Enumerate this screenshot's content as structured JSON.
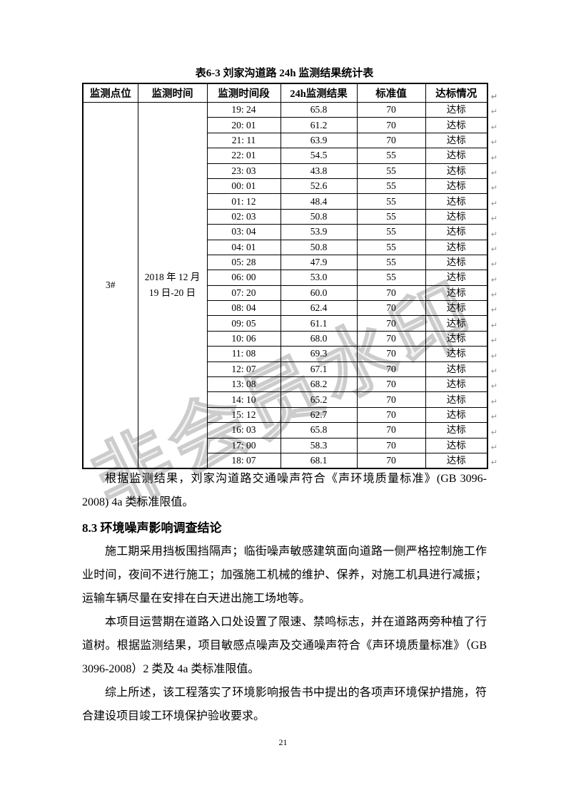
{
  "watermark": {
    "text": "非会员水印",
    "color": "#cccccc"
  },
  "table": {
    "title": "表6-3  刘家沟道路 24h 监测结果统计表",
    "headers": [
      "监测点位",
      "监测时间",
      "监测时间段",
      "24h监测结果",
      "标准值",
      "达标情况"
    ],
    "point": "3#",
    "period_line1": "2018 年 12 月",
    "period_line2": "19 日-20 日",
    "row_end_mark": "↵",
    "rows": [
      [
        "19: 24",
        "65.8",
        "70",
        "达标"
      ],
      [
        "20: 01",
        "61.2",
        "70",
        "达标"
      ],
      [
        "21: 11",
        "63.9",
        "70",
        "达标"
      ],
      [
        "22: 01",
        "54.5",
        "55",
        "达标"
      ],
      [
        "23: 03",
        "43.8",
        "55",
        "达标"
      ],
      [
        "00: 01",
        "52.6",
        "55",
        "达标"
      ],
      [
        "01: 12",
        "48.4",
        "55",
        "达标"
      ],
      [
        "02: 03",
        "50.8",
        "55",
        "达标"
      ],
      [
        "03: 04",
        "53.9",
        "55",
        "达标"
      ],
      [
        "04: 01",
        "50.8",
        "55",
        "达标"
      ],
      [
        "05: 28",
        "47.9",
        "55",
        "达标"
      ],
      [
        "06: 00",
        "53.0",
        "55",
        "达标"
      ],
      [
        "07: 20",
        "60.0",
        "70",
        "达标"
      ],
      [
        "08: 04",
        "62.4",
        "70",
        "达标"
      ],
      [
        "09: 05",
        "61.1",
        "70",
        "达标"
      ],
      [
        "10: 06",
        "68.0",
        "70",
        "达标"
      ],
      [
        "11: 08",
        "69.3",
        "70",
        "达标"
      ],
      [
        "12: 07",
        "67.1",
        "70",
        "达标"
      ],
      [
        "13: 08",
        "68.2",
        "70",
        "达标"
      ],
      [
        "14: 10",
        "65.2",
        "70",
        "达标"
      ],
      [
        "15: 12",
        "62.7",
        "70",
        "达标"
      ],
      [
        "16: 03",
        "65.8",
        "70",
        "达标"
      ],
      [
        "17: 00",
        "58.3",
        "70",
        "达标"
      ],
      [
        "18: 07",
        "68.1",
        "70",
        "达标"
      ]
    ]
  },
  "text": {
    "after_table": "根据监测结果，刘家沟道路交通噪声符合《声环境质量标准》(GB 3096-2008) 4a 类标准限值。",
    "section_heading": "8.3 环境噪声影响调查结论",
    "para1": "施工期采用挡板围挡隔声；临街噪声敏感建筑面向道路一侧严格控制施工作业时间，夜间不进行施工；加强施工机械的维护、保养，对施工机具进行减振；运输车辆尽量在安排在白天进出施工场地等。",
    "para2": "本项目运营期在道路入口处设置了限速、禁鸣标志，并在道路两旁种植了行道树。根据监测结果，项目敏感点噪声及交通噪声符合《声环境质量标准》（GB 3096-2008）2 类及 4a 类标准限值。",
    "para3": "综上所述，该工程落实了环境影响报告书中提出的各项声环境保护措施，符合建设项目竣工环境保护验收要求。"
  },
  "footer": {
    "page_number": "21"
  }
}
